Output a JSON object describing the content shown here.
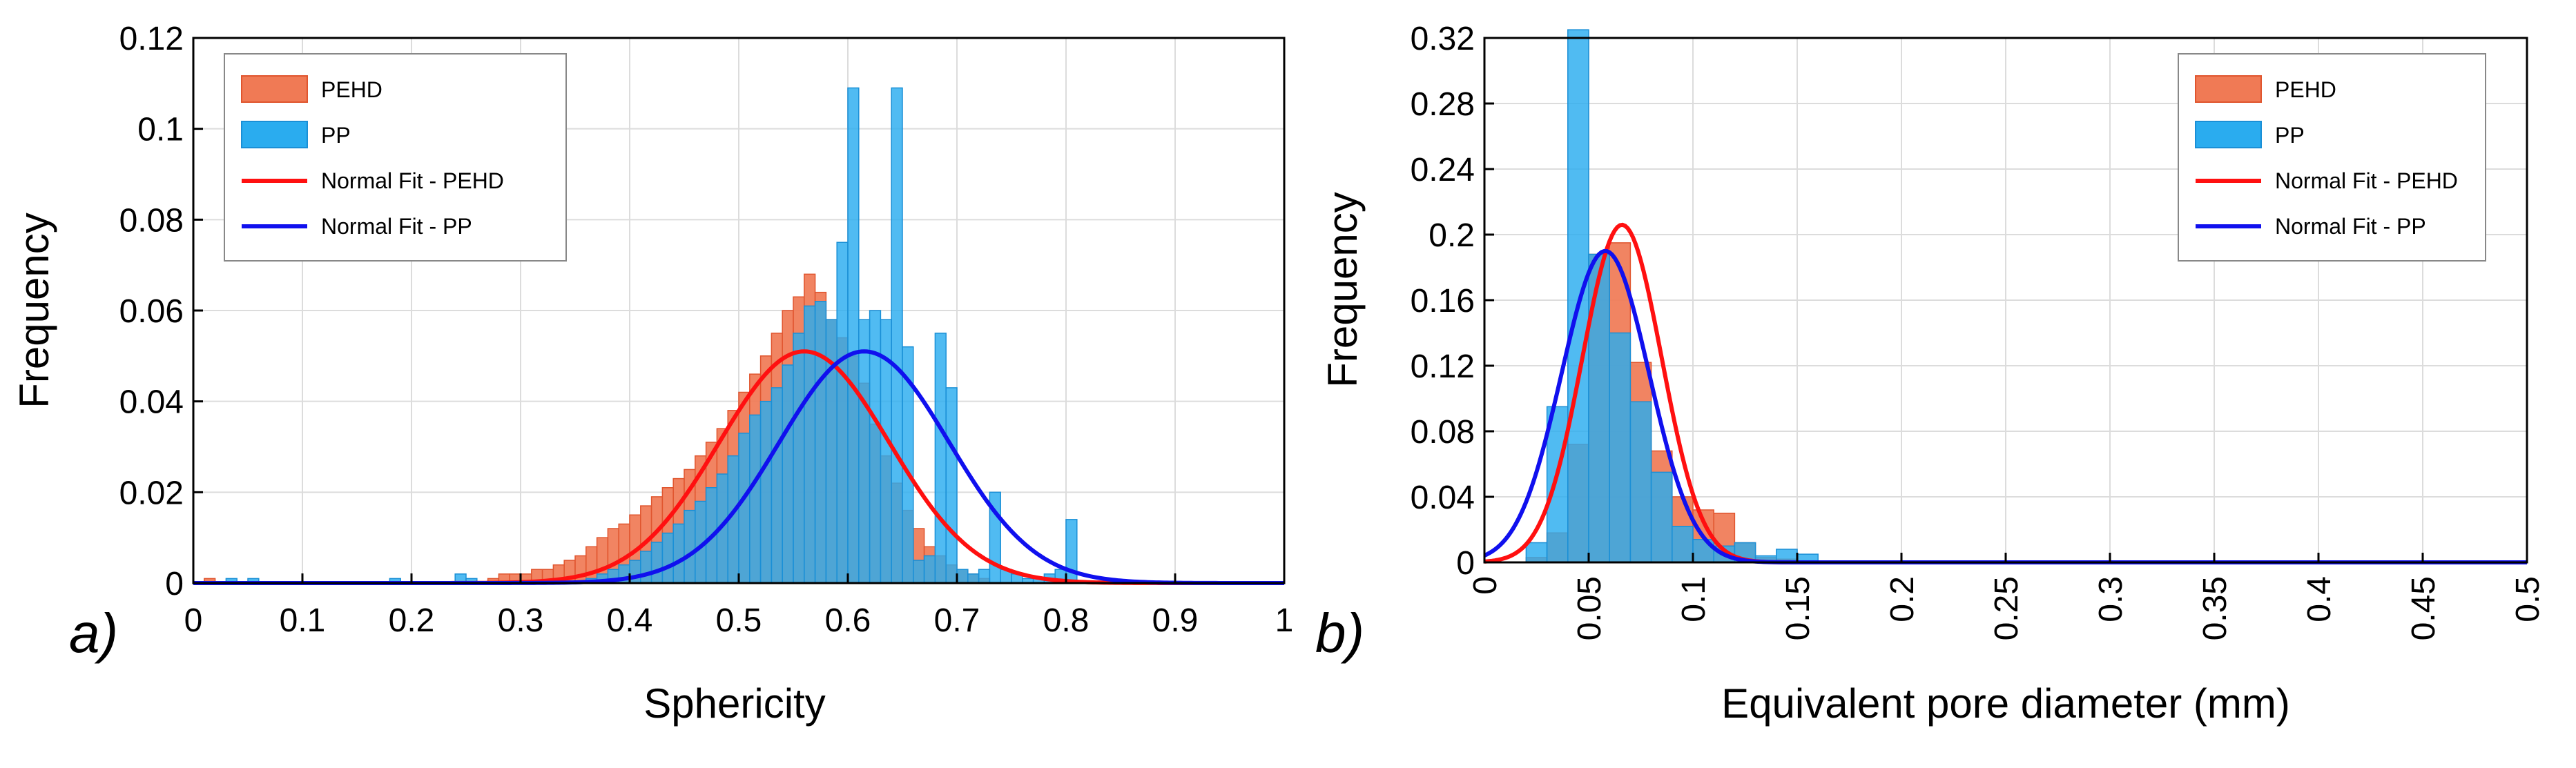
{
  "colors": {
    "pehd_fill": "#F07A55",
    "pehd_edge": "#E0552E",
    "pp_fill": "#2AACEF",
    "pp_edge": "#1A8FD6",
    "fit_pehd": "#FF1010",
    "fit_pp": "#1010EE"
  },
  "chart_data": [
    {
      "id": "a",
      "type": "histogram",
      "panel_label": "a)",
      "xlabel": "Sphericity",
      "ylabel": "Frequency",
      "xlim": [
        0,
        1
      ],
      "ylim": [
        0,
        0.12
      ],
      "xticks": [
        0,
        0.1,
        0.2,
        0.3,
        0.4,
        0.5,
        0.6,
        0.7,
        0.8,
        0.9,
        1
      ],
      "xtick_labels": [
        "0",
        "0.1",
        "0.2",
        "0.3",
        "0.4",
        "0.5",
        "0.6",
        "0.7",
        "0.8",
        "0.9",
        "1"
      ],
      "yticks": [
        0,
        0.02,
        0.04,
        0.06,
        0.08,
        0.1,
        0.12
      ],
      "ytick_labels": [
        "0",
        "0.02",
        "0.04",
        "0.06",
        "0.08",
        "0.1",
        "0.12"
      ],
      "xtick_rotation": 0,
      "legend_position": "top-left",
      "legend": [
        "PEHD",
        "PP",
        "Normal Fit - PEHD",
        "Normal Fit - PP"
      ],
      "bin_width": 0.01,
      "series": [
        {
          "name": "PEHD",
          "bin_start": 0.27,
          "values": [
            0.001,
            0.002,
            0.002,
            0.002,
            0.003,
            0.003,
            0.004,
            0.005,
            0.006,
            0.008,
            0.01,
            0.012,
            0.013,
            0.015,
            0.017,
            0.019,
            0.021,
            0.023,
            0.025,
            0.028,
            0.031,
            0.034,
            0.038,
            0.042,
            0.046,
            0.05,
            0.055,
            0.06,
            0.063,
            0.068,
            0.064,
            0.058,
            0.054,
            0.05,
            0.044,
            0.035,
            0.028,
            0.022,
            0.016,
            0.012,
            0.008,
            0.006,
            0.004,
            0.003,
            0.002,
            0.001
          ],
          "extra_bins": [
            {
              "x": 0.015,
              "value": 0.001
            }
          ]
        },
        {
          "name": "PP",
          "bin_start": 0.36,
          "values": [
            0.001,
            0.002,
            0.003,
            0.004,
            0.005,
            0.007,
            0.009,
            0.011,
            0.013,
            0.016,
            0.018,
            0.021,
            0.024,
            0.028,
            0.033,
            0.037,
            0.04,
            0.043,
            0.048,
            0.055,
            0.061,
            0.062,
            0.058,
            0.075,
            0.109,
            0.058,
            0.06,
            0.058,
            0.109,
            0.052,
            0.005,
            0.006,
            0.055,
            0.043,
            0.003,
            0.002,
            0.003,
            0.02,
            0.003,
            0.002,
            0.001,
            0.001,
            0.002,
            0.003,
            0.014
          ],
          "extra_bins": [
            {
              "x": 0.035,
              "value": 0.001
            },
            {
              "x": 0.055,
              "value": 0.001
            },
            {
              "x": 0.185,
              "value": 0.001
            },
            {
              "x": 0.245,
              "value": 0.002
            },
            {
              "x": 0.255,
              "value": 0.001
            }
          ]
        }
      ],
      "fits": [
        {
          "name": "Normal Fit - PEHD",
          "mean": 0.56,
          "std": 0.078,
          "peak": 0.051
        },
        {
          "name": "Normal Fit - PP",
          "mean": 0.615,
          "std": 0.078,
          "peak": 0.051
        }
      ]
    },
    {
      "id": "b",
      "type": "histogram",
      "panel_label": "b)",
      "xlabel": "Equivalent pore diameter (mm)",
      "ylabel": "Frequency",
      "xlim": [
        0,
        0.5
      ],
      "ylim": [
        0,
        0.32
      ],
      "xticks": [
        0,
        0.05,
        0.1,
        0.15,
        0.2,
        0.25,
        0.3,
        0.35,
        0.4,
        0.45,
        0.5
      ],
      "xtick_labels": [
        "0",
        "0.05",
        "0.1",
        "0.15",
        "0.2",
        "0.25",
        "0.3",
        "0.35",
        "0.4",
        "0.45",
        "0.5"
      ],
      "yticks": [
        0,
        0.04,
        0.08,
        0.12,
        0.16,
        0.2,
        0.24,
        0.28,
        0.32
      ],
      "ytick_labels": [
        "0",
        "0.04",
        "0.08",
        "0.12",
        "0.16",
        "0.2",
        "0.24",
        "0.28",
        "0.32"
      ],
      "xtick_rotation": -90,
      "legend_position": "top-right",
      "legend": [
        "PEHD",
        "PP",
        "Normal Fit - PEHD",
        "Normal Fit - PP"
      ],
      "bin_width": 0.01,
      "series": [
        {
          "name": "PEHD",
          "bin_start": 0.02,
          "values": [
            0.003,
            0.018,
            0.072,
            0.188,
            0.195,
            0.122,
            0.068,
            0.04,
            0.032,
            0.03,
            0.012,
            0.003,
            0.002,
            0.001
          ]
        },
        {
          "name": "PP",
          "bin_start": 0.02,
          "values": [
            0.012,
            0.095,
            0.325,
            0.188,
            0.14,
            0.098,
            0.055,
            0.022,
            0.014,
            0.01,
            0.012,
            0.004,
            0.008,
            0.005
          ]
        }
      ],
      "fits": [
        {
          "name": "Normal Fit - PEHD",
          "mean": 0.066,
          "std": 0.019,
          "peak": 0.206
        },
        {
          "name": "Normal Fit - PP",
          "mean": 0.058,
          "std": 0.021,
          "peak": 0.19
        }
      ]
    }
  ]
}
